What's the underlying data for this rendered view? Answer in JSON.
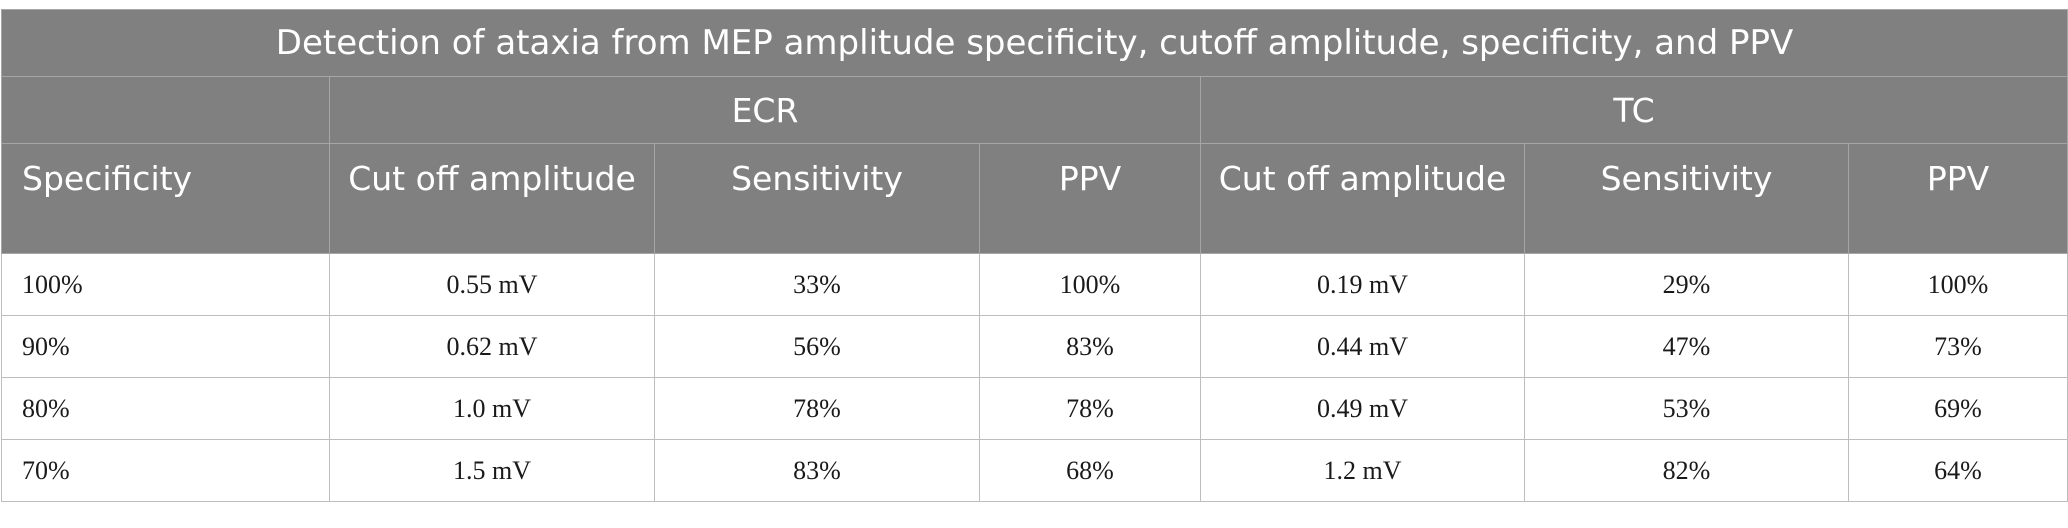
{
  "table": {
    "title": "Detection of ataxia from MEP amplitude specificity, cutoff amplitude, specificity, and PPV",
    "groups": [
      "ECR",
      "TC"
    ],
    "headers": {
      "specificity": "Specificity",
      "ecr_cutoff": "Cut off amplitude",
      "ecr_sensitivity": "Sensitivity",
      "ecr_ppv": "PPV",
      "tc_cutoff": "Cut off amplitude",
      "tc_sensitivity": "Sensitivity",
      "tc_ppv": "PPV"
    },
    "rows": [
      [
        "100%",
        "0.55 mV",
        "33%",
        "100%",
        "0.19 mV",
        "29%",
        "100%"
      ],
      [
        "90%",
        "0.62 mV",
        "56%",
        "83%",
        "0.44 mV",
        "47%",
        "73%"
      ],
      [
        "80%",
        "1.0 mV",
        "78%",
        "78%",
        "0.49 mV",
        "53%",
        "69%"
      ],
      [
        "70%",
        "1.5 mV",
        "83%",
        "68%",
        "1.2 mV",
        "82%",
        "64%"
      ]
    ]
  }
}
